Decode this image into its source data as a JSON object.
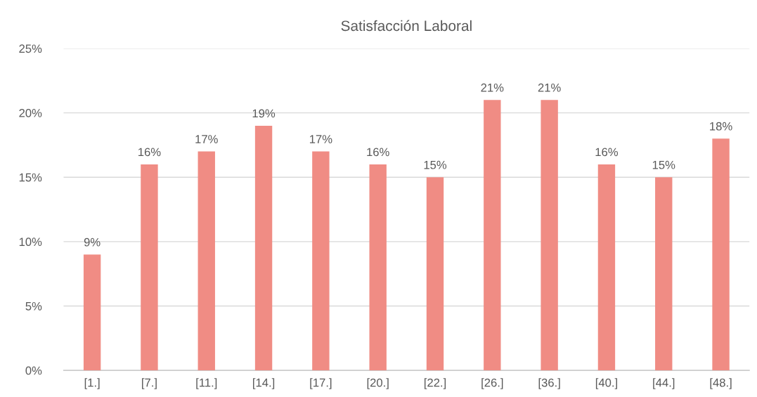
{
  "chart_data": {
    "type": "bar",
    "title": "Satisfacción Laboral",
    "categories": [
      "[1.]",
      "[7.]",
      "[11.]",
      "[14.]",
      "[17.]",
      "[20.]",
      "[22.]",
      "[26.]",
      "[36.]",
      "[40.]",
      "[44.]",
      "[48.]"
    ],
    "values": [
      9,
      16,
      17,
      19,
      17,
      16,
      15,
      21,
      21,
      16,
      15,
      18
    ],
    "value_labels": [
      "9%",
      "16%",
      "17%",
      "19%",
      "17%",
      "16%",
      "15%",
      "21%",
      "21%",
      "16%",
      "15%",
      "18%"
    ],
    "color": "#f08c84",
    "ylim": [
      0,
      25
    ],
    "yticks": [
      {
        "value": 0,
        "label": "0%"
      },
      {
        "value": 5,
        "label": "5%"
      },
      {
        "value": 10,
        "label": "10%"
      },
      {
        "value": 15,
        "label": "15%"
      },
      {
        "value": 20,
        "label": "20%"
      },
      {
        "value": 25,
        "label": "25%"
      }
    ],
    "grid": "y",
    "legend": false
  }
}
